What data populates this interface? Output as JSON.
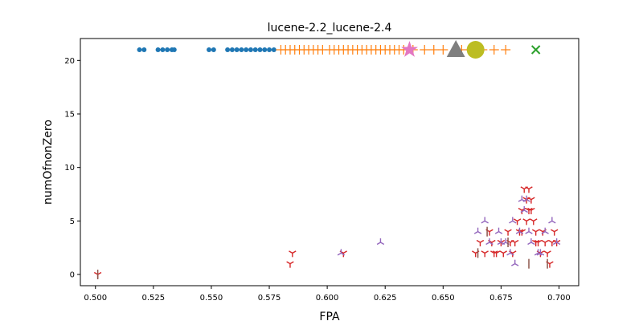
{
  "chart_data": {
    "type": "scatter",
    "title": "lucene-2.2_lucene-2.4",
    "xlabel": "FPA",
    "ylabel": "numOfnonZero",
    "xlim": [
      0.4935,
      0.7085
    ],
    "ylim": [
      -1.05,
      22.05
    ],
    "xticks": [
      0.5,
      0.525,
      0.55,
      0.575,
      0.6,
      0.625,
      0.65,
      0.675,
      0.7
    ],
    "xtick_labels": [
      "0.500",
      "0.525",
      "0.550",
      "0.575",
      "0.600",
      "0.625",
      "0.650",
      "0.675",
      "0.700"
    ],
    "yticks": [
      0,
      5,
      10,
      15,
      20
    ],
    "ytick_labels": [
      "0",
      "5",
      "10",
      "15",
      "20"
    ],
    "grid": false,
    "legend": "none",
    "series": [
      {
        "marker": "circle",
        "color": "#1f77b4",
        "x": [
          0.519,
          0.521,
          0.527,
          0.529,
          0.531,
          0.533,
          0.534,
          0.549,
          0.551,
          0.557,
          0.559,
          0.561,
          0.563,
          0.565,
          0.567,
          0.569,
          0.571,
          0.573,
          0.575,
          0.577
        ],
        "y": [
          21,
          21,
          21,
          21,
          21,
          21,
          21,
          21,
          21,
          21,
          21,
          21,
          21,
          21,
          21,
          21,
          21,
          21,
          21,
          21
        ]
      },
      {
        "marker": "plus",
        "color": "#ff7f0e",
        "x": [
          0.58,
          0.582,
          0.584,
          0.586,
          0.588,
          0.59,
          0.592,
          0.594,
          0.596,
          0.598,
          0.601,
          0.603,
          0.605,
          0.607,
          0.609,
          0.611,
          0.613,
          0.615,
          0.617,
          0.619,
          0.621,
          0.623,
          0.625,
          0.627,
          0.629,
          0.631,
          0.633,
          0.637,
          0.642,
          0.646,
          0.65,
          0.658,
          0.662,
          0.667,
          0.672,
          0.677
        ],
        "y": [
          21,
          21,
          21,
          21,
          21,
          21,
          21,
          21,
          21,
          21,
          21,
          21,
          21,
          21,
          21,
          21,
          21,
          21,
          21,
          21,
          21,
          21,
          21,
          21,
          21,
          21,
          21,
          21,
          21,
          21,
          21,
          21,
          21,
          21,
          21,
          21
        ]
      },
      {
        "marker": "x",
        "color": "#2ca02c",
        "x": [
          0.69
        ],
        "y": [
          21
        ]
      },
      {
        "marker": "tri_down",
        "color": "#d62728",
        "x": [
          0.501,
          0.584,
          0.585,
          0.607,
          0.664,
          0.666,
          0.668,
          0.67,
          0.671,
          0.673,
          0.675,
          0.676,
          0.678,
          0.68,
          0.681,
          0.682,
          0.683,
          0.684,
          0.685,
          0.686,
          0.687,
          0.688,
          0.689,
          0.69,
          0.691,
          0.692,
          0.693,
          0.694,
          0.695,
          0.696,
          0.697,
          0.698,
          0.699,
          0.686,
          0.688,
          0.684,
          0.687,
          0.69,
          0.672,
          0.679
        ],
        "y": [
          0,
          1,
          2,
          2,
          2,
          3,
          2,
          4,
          3,
          2,
          3,
          2,
          4,
          2,
          3,
          5,
          4,
          6,
          8,
          7,
          8,
          6,
          5,
          4,
          3,
          2,
          4,
          3,
          2,
          1,
          3,
          4,
          3,
          5,
          7,
          4,
          6,
          3,
          2,
          3
        ]
      },
      {
        "marker": "tri_up",
        "color": "#9467bd",
        "x": [
          0.606,
          0.623,
          0.665,
          0.668,
          0.67,
          0.674,
          0.677,
          0.679,
          0.68,
          0.681,
          0.684,
          0.685,
          0.686,
          0.687,
          0.688,
          0.692,
          0.694,
          0.697,
          0.699,
          0.675,
          0.683,
          0.691
        ],
        "y": [
          2,
          3,
          4,
          5,
          3,
          4,
          3,
          2,
          5,
          1,
          7,
          6,
          7,
          4,
          3,
          2,
          4,
          5,
          3,
          3,
          4,
          2
        ]
      },
      {
        "marker": "vline",
        "color": "#8c564b",
        "x": [
          0.501,
          0.665,
          0.669,
          0.678,
          0.687,
          0.695
        ],
        "y": [
          0,
          2,
          4,
          3,
          1,
          1
        ]
      },
      {
        "marker": "star",
        "color": "#e377c2",
        "x": [
          0.6355
        ],
        "y": [
          21
        ]
      },
      {
        "marker": "triangle",
        "color": "#7f7f7f",
        "x": [
          0.6555
        ],
        "y": [
          21
        ]
      },
      {
        "marker": "big_circle",
        "color": "#bcbd22",
        "x": [
          0.664
        ],
        "y": [
          21
        ]
      }
    ]
  }
}
